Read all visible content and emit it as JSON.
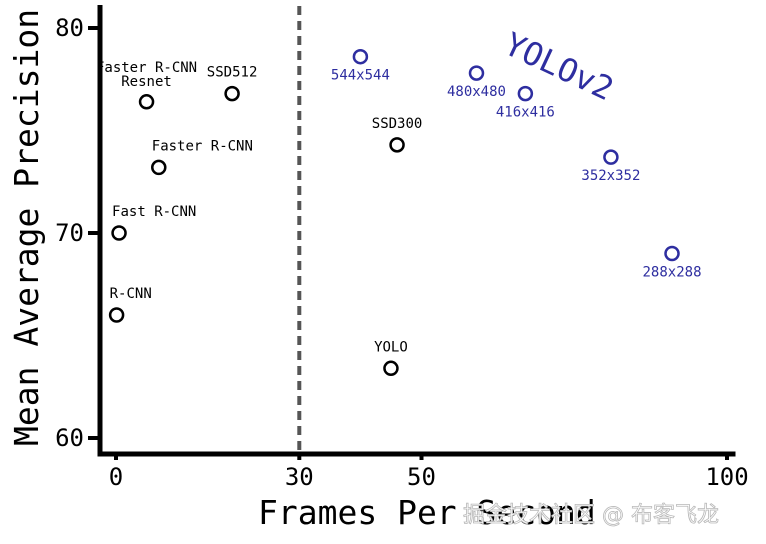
{
  "chart_data": {
    "type": "scatter",
    "xlabel": "Frames Per Second",
    "ylabel": "Mean Average Precision",
    "xlim": [
      0,
      100
    ],
    "ylim": [
      60,
      81
    ],
    "x_ticks": [
      0,
      30,
      50,
      100
    ],
    "y_ticks": [
      60,
      70,
      80
    ],
    "divider_x": 30,
    "grid": false,
    "series": [
      {
        "color": "#000000",
        "points": [
          {
            "label": "R-CNN",
            "x": 0.1,
            "y": 66.0
          },
          {
            "label": "Fast R-CNN",
            "x": 0.5,
            "y": 70.0
          },
          {
            "label": "Faster R-CNN",
            "x": 7,
            "y": 73.2
          },
          {
            "label": "Faster R-CNN\nResnet",
            "x": 5,
            "y": 76.4
          },
          {
            "label": "SSD512",
            "x": 19,
            "y": 76.8
          },
          {
            "label": "SSD300",
            "x": 46,
            "y": 74.3
          },
          {
            "label": "YOLO",
            "x": 45,
            "y": 63.4
          }
        ]
      },
      {
        "name": "YOLOv2",
        "color": "#2e2ea0",
        "points": [
          {
            "label": "544x544",
            "x": 40,
            "y": 78.6
          },
          {
            "label": "480x480",
            "x": 59,
            "y": 77.8
          },
          {
            "label": "416x416",
            "x": 67,
            "y": 76.8
          },
          {
            "label": "352x352",
            "x": 81,
            "y": 73.7
          },
          {
            "label": "288x288",
            "x": 91,
            "y": 69.0
          }
        ]
      }
    ]
  },
  "watermark": "掘金技术社区 @ 布客飞龙"
}
